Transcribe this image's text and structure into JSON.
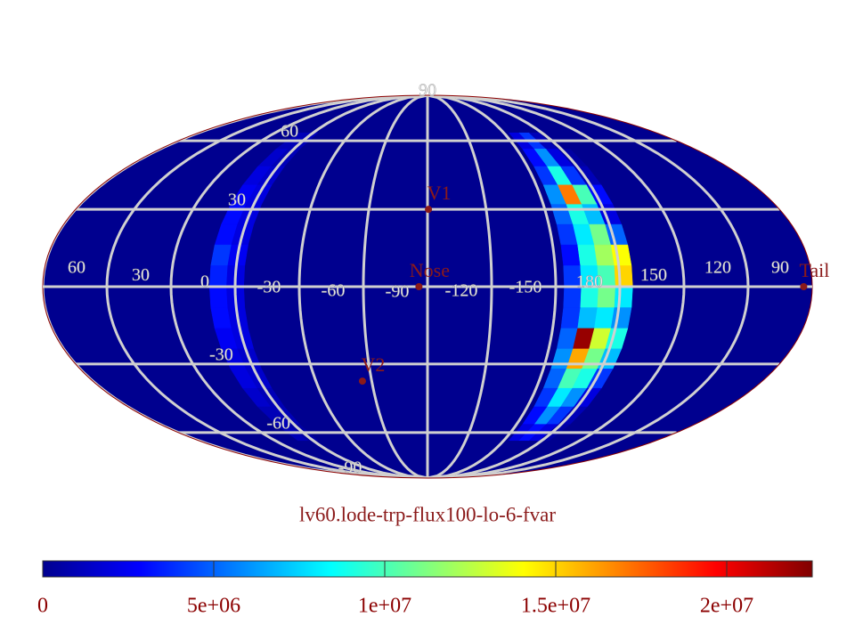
{
  "chart_data": {
    "type": "mollweide-map",
    "title": "lv60.lode-trp-flux100-lo-6-fvar",
    "center_lon": -90,
    "lon_direction": "left",
    "grid": true,
    "lon_ticks": [
      60,
      30,
      0,
      -30,
      -60,
      -90,
      -120,
      -150,
      180,
      150,
      120,
      90
    ],
    "lat_ticks": [
      90,
      60,
      30,
      -30,
      -60,
      -90
    ],
    "markers": [
      {
        "name": "V1",
        "lon": -90.5,
        "lat": 30,
        "color": "#8b1a1a"
      },
      {
        "name": "Nose",
        "lon": -86,
        "lat": 0,
        "color": "#8b1a1a"
      },
      {
        "name": "V2",
        "lon": -55,
        "lat": -37,
        "color": "#8b1a1a"
      },
      {
        "name": "Tail",
        "lon": 94,
        "lat": 0,
        "color": "#8b1a1a"
      }
    ],
    "cells": {
      "lon": [
        8,
        0,
        -158,
        -166,
        -174,
        178
      ],
      "lat": [
        60,
        52,
        44,
        36,
        28,
        20,
        12,
        4,
        -4,
        -12,
        -20,
        -28,
        -36,
        -44,
        -52,
        -60
      ],
      "values": [
        [
          1000000,
          1000000,
          2000000,
          4000000,
          1000000,
          0
        ],
        [
          1500000,
          1000000,
          3000000,
          6000000,
          2000000,
          500000
        ],
        [
          2000000,
          1500000,
          4000000,
          9000000,
          4000000,
          1000000
        ],
        [
          2500000,
          2000000,
          6000000,
          17000000,
          10000000,
          3000000
        ],
        [
          3000000,
          2000000,
          5000000,
          9000000,
          7000000,
          2000000
        ],
        [
          3000000,
          2000000,
          4000000,
          8000000,
          11000000,
          5000000
        ],
        [
          4000000,
          2500000,
          3000000,
          9000000,
          12000000,
          14000000
        ],
        [
          3500000,
          2000000,
          4000000,
          8000000,
          10000000,
          15000000
        ],
        [
          3000000,
          2000000,
          4000000,
          9000000,
          11000000,
          8000000
        ],
        [
          3000000,
          2000000,
          4000000,
          7000000,
          8000000,
          6000000
        ],
        [
          2500000,
          2000000,
          5000000,
          22000000,
          13000000,
          9000000
        ],
        [
          2000000,
          1500000,
          6000000,
          16000000,
          11000000,
          7000000
        ],
        [
          2000000,
          1500000,
          5000000,
          10000000,
          9000000,
          4000000
        ],
        [
          1500000,
          1000000,
          4000000,
          8000000,
          6000000,
          2000000
        ],
        [
          1000000,
          1000000,
          3000000,
          6000000,
          4000000,
          1000000
        ],
        [
          1000000,
          500000,
          2000000,
          3000000,
          2000000,
          500000
        ]
      ]
    },
    "colorbar": {
      "lim": [
        0,
        22500000
      ],
      "ticks": [
        0,
        {
          "value": 5000000,
          "label": "5e+06"
        },
        {
          "value": 10000000,
          "label": "1e+07"
        },
        {
          "value": 15000000,
          "label": "1.5e+07"
        },
        {
          "value": 20000000,
          "label": "2e+07"
        }
      ],
      "colors": [
        "#00008f",
        "#0000ff",
        "#0080ff",
        "#00ffff",
        "#80ff80",
        "#ffff00",
        "#ff8000",
        "#ff0000",
        "#800000"
      ]
    }
  }
}
